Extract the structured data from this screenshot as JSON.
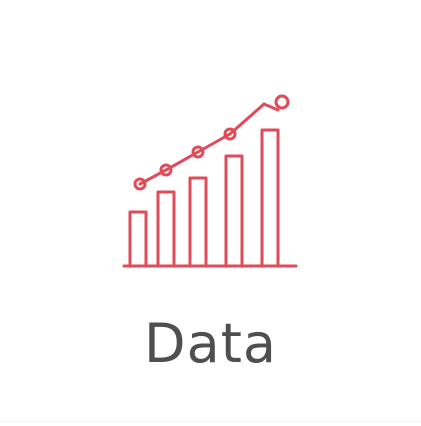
{
  "card": {
    "label": "Data",
    "icon": "bar-chart-line-icon"
  },
  "colors": {
    "accent": "#e04b59",
    "label": "#4f4f4f",
    "background": "#ffffff"
  }
}
